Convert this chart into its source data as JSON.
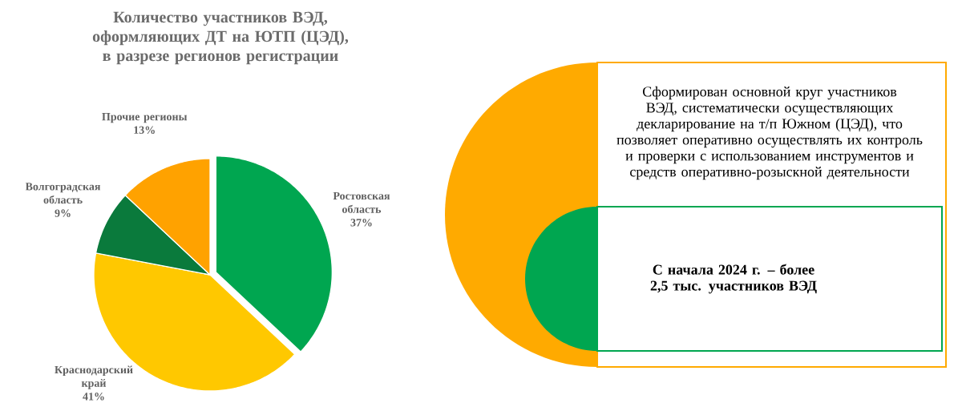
{
  "chart_data": [
    {
      "type": "pie",
      "title": "Количество участников ВЭД, оформляющих ДТ на ЮТП (ЦЭД), в разрезе регионов регистрации",
      "categories": [
        "Ростовская область",
        "Краснодарский край",
        "Волгоградская область",
        "Прочие регионы"
      ],
      "values": [
        37,
        41,
        9,
        13
      ],
      "colors": [
        "#00a650",
        "#ffc800",
        "#0a7a3c",
        "#ffa200"
      ],
      "value_labels": [
        "37%",
        "41%",
        "9%",
        "13%"
      ]
    },
    {
      "type": "other",
      "annotations": [
        "Сформирован основной круг участников ВЭД, систематически осуществляющих декларирование на т/п Южном (ЦЭД), что позволяет оперативно осуществлять их контроль и проверки с использованием инструментов и средств оперативно-розыскной деятельности",
        "**С начала 2024 г. –  более 2,5 тыс. участников ВЭД**"
      ]
    }
  ]
}
